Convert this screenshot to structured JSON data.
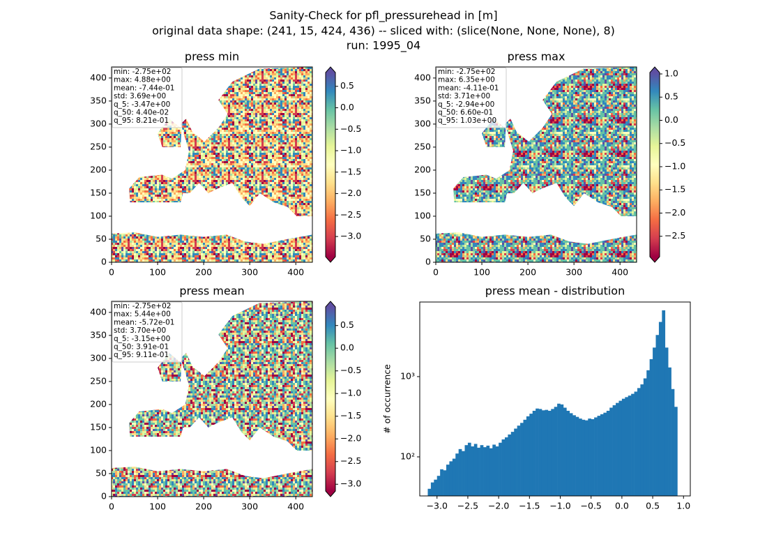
{
  "suptitle": [
    "Sanity-Check for pfl_pressurehead in [m]",
    "original data shape: (241, 15, 424, 436) -- sliced with: (slice(None, None, None), 8)",
    "run: 1995_04"
  ],
  "chart_data": [
    {
      "type": "heatmap",
      "title": "press min",
      "xlim": [
        0,
        436
      ],
      "ylim": [
        0,
        424
      ],
      "xticks": [
        0,
        100,
        200,
        300,
        400
      ],
      "yticks": [
        0,
        50,
        100,
        150,
        200,
        250,
        300,
        350,
        400
      ],
      "clim": [
        -3.47,
        0.821
      ],
      "cticks": [
        0.5,
        {
          "value": 0,
          "label": "0.0"
        },
        {
          "value": -0.5,
          "label": "−0.5"
        },
        {
          "value": -1,
          "label": "−1.0"
        },
        {
          "value": -1.5,
          "label": "−1.5"
        },
        {
          "value": -2,
          "label": "−2.0"
        },
        {
          "value": -2.5,
          "label": "−2.5"
        },
        {
          "value": -3,
          "label": "−3.0"
        }
      ],
      "stats": [
        "min: -2.75e+02",
        "max: 4.88e+00",
        "mean: -7.44e-01",
        "std: 3.69e+00",
        "q_5: -3.47e+00",
        "q_50: 4.40e-02",
        "q_95: 8.21e-01"
      ]
    },
    {
      "type": "heatmap",
      "title": "press max",
      "xlim": [
        0,
        436
      ],
      "ylim": [
        0,
        424
      ],
      "xticks": [
        0,
        100,
        200,
        300,
        400
      ],
      "yticks": [
        0,
        50,
        100,
        150,
        200,
        250,
        300,
        350,
        400
      ],
      "clim": [
        -2.94,
        1.03
      ],
      "cticks": [
        {
          "value": 1,
          "label": "1.0"
        },
        0.5,
        {
          "value": 0,
          "label": "0.0"
        },
        {
          "value": -0.5,
          "label": "−0.5"
        },
        {
          "value": -1,
          "label": "−1.0"
        },
        {
          "value": -1.5,
          "label": "−1.5"
        },
        {
          "value": -2,
          "label": "−2.0"
        },
        {
          "value": -2.5,
          "label": "−2.5"
        }
      ],
      "stats": [
        "min: -2.75e+02",
        "max: 6.35e+00",
        "mean: -4.11e-01",
        "std: 3.71e+00",
        "q_5: -2.94e+00",
        "q_50: 6.60e-01",
        "q_95: 1.03e+00"
      ]
    },
    {
      "type": "heatmap",
      "title": "press mean",
      "xlim": [
        0,
        436
      ],
      "ylim": [
        0,
        424
      ],
      "xticks": [
        0,
        100,
        200,
        300,
        400
      ],
      "yticks": [
        0,
        50,
        100,
        150,
        200,
        250,
        300,
        350,
        400
      ],
      "clim": [
        -3.15,
        0.911
      ],
      "cticks": [
        0.5,
        {
          "value": 0,
          "label": "0.0"
        },
        {
          "value": -0.5,
          "label": "−0.5"
        },
        {
          "value": -1,
          "label": "−1.0"
        },
        {
          "value": -1.5,
          "label": "−1.5"
        },
        {
          "value": -2,
          "label": "−2.0"
        },
        {
          "value": -2.5,
          "label": "−2.5"
        },
        {
          "value": -3,
          "label": "−3.0"
        }
      ],
      "stats": [
        "min: -2.75e+02",
        "max: 5.44e+00",
        "mean: -5.72e-01",
        "std: 3.70e+00",
        "q_5: -3.15e+00",
        "q_50: 3.91e-01",
        "q_95: 9.11e-01"
      ]
    },
    {
      "type": "histogram",
      "title": "press mean - distribution",
      "ylabel": "# of occurrence",
      "color": "#1f77b4",
      "log_y": true,
      "xlim": [
        -3.28,
        1.11
      ],
      "ylim": [
        32.6,
        8500
      ],
      "xticks": [
        {
          "value": -3,
          "label": "−3.0"
        },
        {
          "value": -2.5,
          "label": "−2.5"
        },
        {
          "value": -2,
          "label": "−2.0"
        },
        {
          "value": -1.5,
          "label": "−1.5"
        },
        {
          "value": -1,
          "label": "−1.0"
        },
        {
          "value": -0.5,
          "label": "−0.5"
        },
        {
          "value": 0,
          "label": "0.0"
        },
        0.5,
        {
          "value": 1,
          "label": "1.0"
        }
      ],
      "yticks": [
        {
          "value": 100,
          "label": "10²"
        },
        {
          "value": 1000,
          "label": "10³"
        }
      ],
      "bins": [
        -3.15,
        -3.1,
        -3.05,
        -3.0,
        -2.95,
        -2.9,
        -2.85,
        -2.8,
        -2.75,
        -2.7,
        -2.65,
        -2.6,
        -2.55,
        -2.5,
        -2.45,
        -2.4,
        -2.35,
        -2.3,
        -2.25,
        -2.2,
        -2.15,
        -2.1,
        -2.05,
        -2.0,
        -1.95,
        -1.9,
        -1.85,
        -1.8,
        -1.75,
        -1.7,
        -1.65,
        -1.6,
        -1.55,
        -1.5,
        -1.45,
        -1.4,
        -1.35,
        -1.3,
        -1.25,
        -1.2,
        -1.15,
        -1.1,
        -1.05,
        -1.0,
        -0.95,
        -0.9,
        -0.85,
        -0.8,
        -0.75,
        -0.7,
        -0.65,
        -0.6,
        -0.55,
        -0.5,
        -0.45,
        -0.4,
        -0.35,
        -0.3,
        -0.25,
        -0.2,
        -0.15,
        -0.1,
        -0.05,
        0.0,
        0.05,
        0.1,
        0.15,
        0.2,
        0.25,
        0.3,
        0.35,
        0.4,
        0.45,
        0.5,
        0.55,
        0.6,
        0.65,
        0.7,
        0.75,
        0.8,
        0.85,
        0.9
      ],
      "counts": [
        40,
        48,
        52,
        58,
        70,
        68,
        80,
        88,
        95,
        110,
        125,
        118,
        140,
        150,
        135,
        145,
        130,
        140,
        132,
        138,
        128,
        142,
        135,
        150,
        165,
        175,
        190,
        205,
        225,
        245,
        265,
        290,
        320,
        345,
        375,
        400,
        395,
        380,
        385,
        375,
        395,
        420,
        460,
        450,
        410,
        375,
        350,
        330,
        315,
        300,
        290,
        285,
        300,
        295,
        310,
        325,
        340,
        355,
        375,
        410,
        440,
        470,
        500,
        530,
        555,
        580,
        610,
        650,
        720,
        800,
        950,
        1200,
        1650,
        2300,
        3300,
        4800,
        6700,
        2300,
        1300,
        700,
        420
      ]
    }
  ]
}
